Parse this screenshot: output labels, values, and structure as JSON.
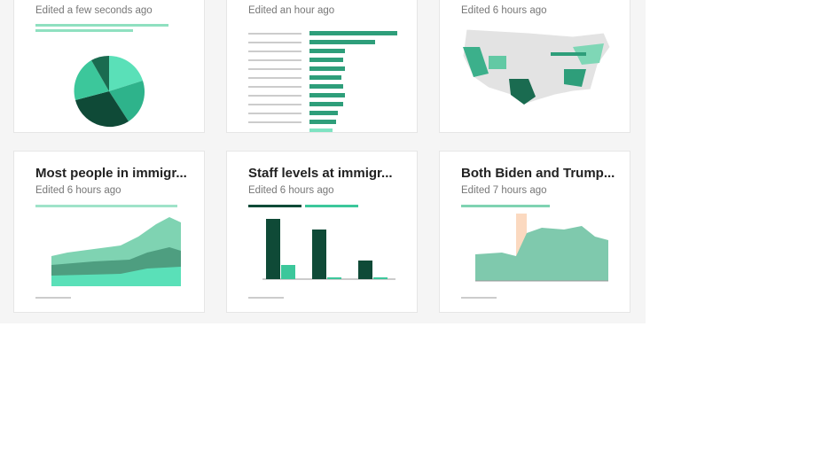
{
  "cards": [
    {
      "edited": "Edited a few seconds ago"
    },
    {
      "edited": "Edited an hour ago"
    },
    {
      "edited": "Edited 6 hours ago"
    },
    {
      "title": "Most people in immigr...",
      "edited": "Edited 6 hours ago"
    },
    {
      "title": "Staff levels at immigr...",
      "edited": "Edited 6 hours ago"
    },
    {
      "title": "Both Biden and Trump...",
      "edited": "Edited 7 hours ago"
    }
  ]
}
